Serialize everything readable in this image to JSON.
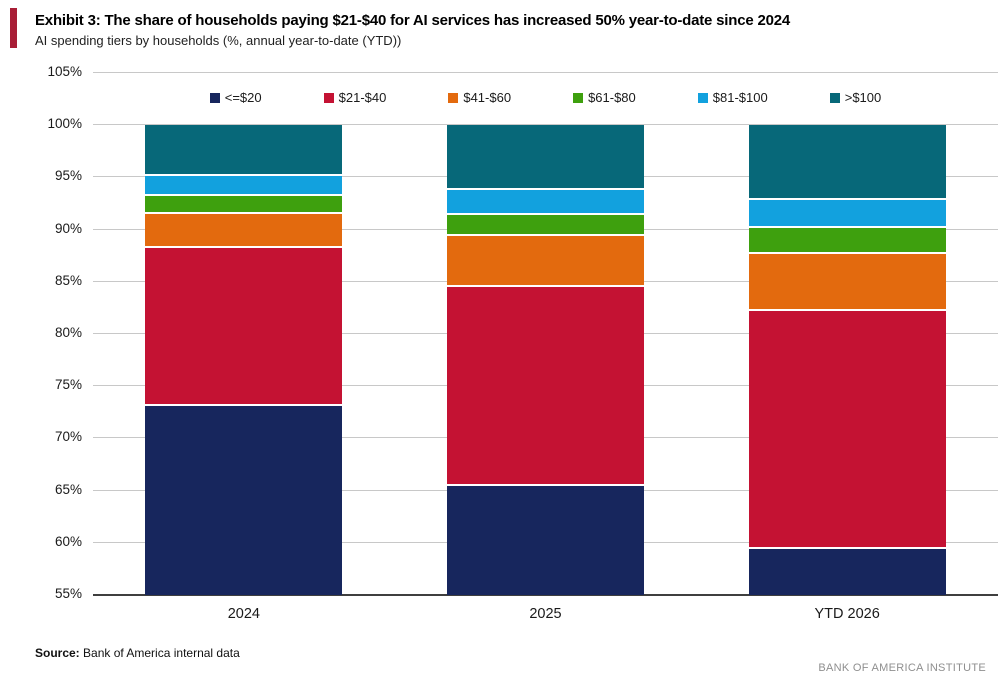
{
  "chart_data": {
    "type": "bar",
    "stacked": true,
    "title": "Exhibit 3: The share of households paying $21-$40 for AI services has increased 50% year-to-date since 2024",
    "subtitle": "AI spending tiers by households (%, annual year-to-date (YTD))",
    "categories": [
      "2024",
      "2025",
      "YTD 2026"
    ],
    "series": [
      {
        "name": "<=$20",
        "color": "#17265d",
        "values": [
          73.3,
          65.6,
          59.6
        ]
      },
      {
        "name": "$21-$40",
        "color": "#c41233",
        "values": [
          15.1,
          19.1,
          22.8
        ]
      },
      {
        "name": "$41-$60",
        "color": "#e36a0e",
        "values": [
          3.3,
          4.9,
          5.5
        ]
      },
      {
        "name": "$61-$80",
        "color": "#3ea00e",
        "values": [
          1.7,
          2.0,
          2.4
        ]
      },
      {
        "name": "$81-$100",
        "color": "#12a1de",
        "values": [
          1.9,
          2.4,
          2.7
        ]
      },
      {
        "name": ">$100",
        "color": "#076879",
        "values": [
          4.7,
          6.0,
          7.0
        ]
      }
    ],
    "ylim": [
      55,
      105
    ],
    "ytick_step": 5,
    "ytick_suffix": "%",
    "grid": true,
    "legend_position": "top",
    "accent_color": "#a81e36"
  },
  "footer": {
    "source_label": "Source:",
    "source_text": " Bank of America internal data",
    "brand": "BANK OF AMERICA INSTITUTE"
  }
}
